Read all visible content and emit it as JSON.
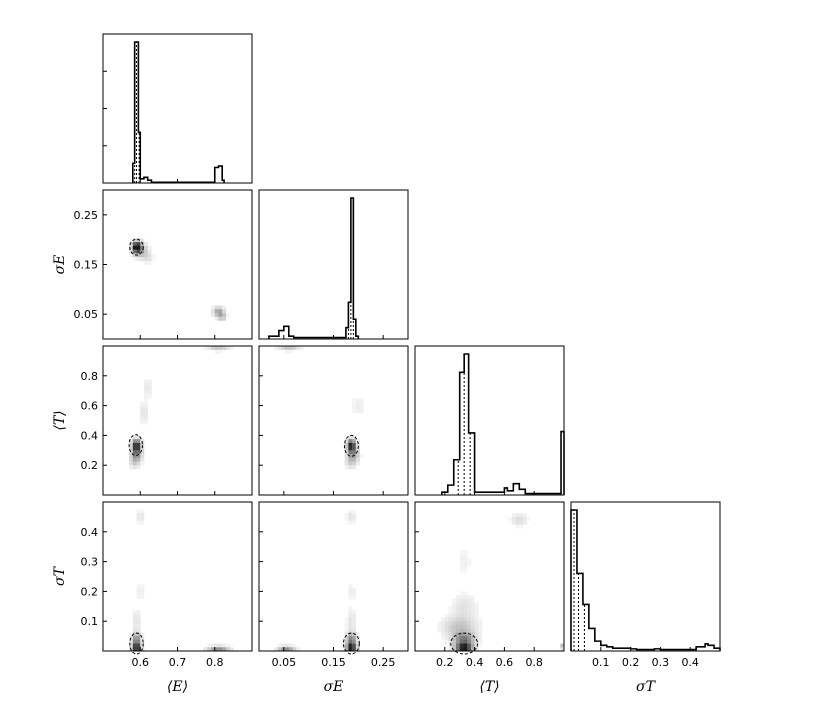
{
  "chart_data": {
    "type": "corner",
    "parameters": [
      {
        "key": "E",
        "label": "⟨E⟩",
        "range": [
          0.5,
          0.9
        ],
        "ticks": [
          0.6,
          0.7,
          0.8
        ],
        "tick_labels": [
          "0.6",
          "0.7",
          "0.8"
        ]
      },
      {
        "key": "sE",
        "label": "σE",
        "range": [
          0.0,
          0.3
        ],
        "ticks": [
          0.05,
          0.15,
          0.25
        ],
        "tick_labels": [
          "0.05",
          "0.15",
          "0.25"
        ]
      },
      {
        "key": "T",
        "label": "⟨T⟩",
        "range": [
          0.0,
          1.0
        ],
        "ticks": [
          0.2,
          0.4,
          0.6,
          0.8
        ],
        "tick_labels": [
          "0.2",
          "0.4",
          "0.6",
          "0.8"
        ]
      },
      {
        "key": "sT",
        "label": "σT",
        "range": [
          0.0,
          0.5
        ],
        "ticks": [
          0.1,
          0.2,
          0.3,
          0.4
        ],
        "tick_labels": [
          "0.1",
          "0.2",
          "0.3",
          "0.4"
        ]
      }
    ],
    "histograms": [
      {
        "param": "E",
        "quantiles": [
          0.585,
          0.59,
          0.597
        ],
        "bins": [
          [
            0.58,
            0.585,
            0.14
          ],
          [
            0.585,
            0.595,
            1.0
          ],
          [
            0.595,
            0.6,
            0.36
          ],
          [
            0.6,
            0.61,
            0.03
          ],
          [
            0.61,
            0.62,
            0.04
          ],
          [
            0.62,
            0.63,
            0.02
          ],
          [
            0.63,
            0.8,
            0.005
          ],
          [
            0.8,
            0.81,
            0.11
          ],
          [
            0.81,
            0.82,
            0.12
          ],
          [
            0.82,
            0.825,
            0.02
          ]
        ]
      },
      {
        "param": "sE",
        "quantiles": [
          0.18,
          0.185,
          0.19
        ],
        "bins": [
          [
            0.02,
            0.04,
            0.02
          ],
          [
            0.04,
            0.05,
            0.06
          ],
          [
            0.05,
            0.06,
            0.09
          ],
          [
            0.06,
            0.07,
            0.02
          ],
          [
            0.07,
            0.175,
            0.01
          ],
          [
            0.175,
            0.18,
            0.08
          ],
          [
            0.18,
            0.185,
            0.26
          ],
          [
            0.185,
            0.19,
            1.0
          ],
          [
            0.19,
            0.195,
            0.14
          ],
          [
            0.195,
            0.2,
            0.02
          ]
        ]
      },
      {
        "param": "T",
        "quantiles": [
          0.29,
          0.33,
          0.37
        ],
        "bins": [
          [
            0.18,
            0.22,
            0.02
          ],
          [
            0.22,
            0.26,
            0.07
          ],
          [
            0.26,
            0.3,
            0.25
          ],
          [
            0.3,
            0.33,
            0.87
          ],
          [
            0.33,
            0.36,
            1.0
          ],
          [
            0.36,
            0.4,
            0.44
          ],
          [
            0.4,
            0.42,
            0.02
          ],
          [
            0.42,
            0.6,
            0.02
          ],
          [
            0.6,
            0.62,
            0.05
          ],
          [
            0.62,
            0.66,
            0.03
          ],
          [
            0.66,
            0.7,
            0.08
          ],
          [
            0.7,
            0.74,
            0.04
          ],
          [
            0.74,
            0.98,
            0.01
          ],
          [
            0.98,
            1.0,
            0.45
          ]
        ]
      },
      {
        "param": "sT",
        "quantiles": [
          0.01,
          0.025,
          0.045
        ],
        "bins": [
          [
            0.0,
            0.02,
            1.0
          ],
          [
            0.02,
            0.04,
            0.55
          ],
          [
            0.04,
            0.06,
            0.33
          ],
          [
            0.06,
            0.08,
            0.16
          ],
          [
            0.08,
            0.1,
            0.07
          ],
          [
            0.1,
            0.12,
            0.04
          ],
          [
            0.12,
            0.14,
            0.03
          ],
          [
            0.14,
            0.2,
            0.02
          ],
          [
            0.2,
            0.22,
            0.015
          ],
          [
            0.22,
            0.28,
            0.01
          ],
          [
            0.28,
            0.3,
            0.015
          ],
          [
            0.3,
            0.42,
            0.01
          ],
          [
            0.42,
            0.45,
            0.03
          ],
          [
            0.45,
            0.46,
            0.05
          ],
          [
            0.46,
            0.48,
            0.04
          ],
          [
            0.48,
            0.5,
            0.02
          ]
        ]
      }
    ],
    "pairs": [
      {
        "x": "E",
        "y": "sE",
        "contour": {
          "cx": 0.59,
          "cy": 0.185,
          "rx": 0.018,
          "ry": 0.016
        },
        "blobs": [
          [
            0.59,
            0.185,
            1.0,
            0.008,
            0.008
          ],
          [
            0.6,
            0.18,
            0.4,
            0.012,
            0.01
          ],
          [
            0.62,
            0.165,
            0.15,
            0.01,
            0.008
          ],
          [
            0.81,
            0.055,
            0.4,
            0.01,
            0.007
          ],
          [
            0.82,
            0.045,
            0.25,
            0.008,
            0.006
          ]
        ]
      },
      {
        "x": "E",
        "y": "T",
        "contour": {
          "cx": 0.588,
          "cy": 0.335,
          "rx": 0.018,
          "ry": 0.07
        },
        "blobs": [
          [
            0.59,
            0.33,
            1.0,
            0.008,
            0.03
          ],
          [
            0.59,
            0.27,
            0.4,
            0.01,
            0.03
          ],
          [
            0.585,
            0.22,
            0.2,
            0.01,
            0.03
          ],
          [
            0.61,
            0.55,
            0.12,
            0.01,
            0.05
          ],
          [
            0.62,
            0.72,
            0.1,
            0.01,
            0.05
          ],
          [
            0.81,
            0.99,
            0.25,
            0.02,
            0.015
          ]
        ]
      },
      {
        "x": "sE",
        "y": "T",
        "contour": {
          "cx": 0.186,
          "cy": 0.33,
          "rx": 0.014,
          "ry": 0.07
        },
        "blobs": [
          [
            0.186,
            0.33,
            1.0,
            0.006,
            0.03
          ],
          [
            0.19,
            0.27,
            0.35,
            0.008,
            0.03
          ],
          [
            0.185,
            0.22,
            0.2,
            0.008,
            0.03
          ],
          [
            0.06,
            0.99,
            0.25,
            0.015,
            0.015
          ],
          [
            0.2,
            0.6,
            0.08,
            0.01,
            0.05
          ]
        ]
      },
      {
        "x": "E",
        "y": "sT",
        "contour": {
          "cx": 0.59,
          "cy": 0.025,
          "rx": 0.018,
          "ry": 0.035
        },
        "blobs": [
          [
            0.59,
            0.01,
            1.0,
            0.008,
            0.012
          ],
          [
            0.59,
            0.04,
            0.5,
            0.008,
            0.015
          ],
          [
            0.59,
            0.1,
            0.12,
            0.008,
            0.03
          ],
          [
            0.6,
            0.2,
            0.08,
            0.008,
            0.02
          ],
          [
            0.6,
            0.45,
            0.12,
            0.008,
            0.015
          ],
          [
            0.81,
            0.008,
            0.5,
            0.02,
            0.006
          ]
        ]
      },
      {
        "x": "sE",
        "y": "sT",
        "contour": {
          "cx": 0.186,
          "cy": 0.025,
          "rx": 0.016,
          "ry": 0.035
        },
        "blobs": [
          [
            0.186,
            0.01,
            1.0,
            0.007,
            0.012
          ],
          [
            0.186,
            0.04,
            0.5,
            0.007,
            0.015
          ],
          [
            0.186,
            0.1,
            0.12,
            0.007,
            0.03
          ],
          [
            0.186,
            0.2,
            0.08,
            0.007,
            0.02
          ],
          [
            0.186,
            0.45,
            0.12,
            0.007,
            0.015
          ],
          [
            0.055,
            0.008,
            0.5,
            0.012,
            0.006
          ]
        ]
      },
      {
        "x": "T",
        "y": "sT",
        "contour": {
          "cx": 0.33,
          "cy": 0.025,
          "rx": 0.09,
          "ry": 0.035
        },
        "blobs": [
          [
            0.33,
            0.01,
            1.0,
            0.04,
            0.012
          ],
          [
            0.33,
            0.04,
            0.5,
            0.05,
            0.015
          ],
          [
            0.3,
            0.08,
            0.25,
            0.08,
            0.025
          ],
          [
            0.33,
            0.15,
            0.12,
            0.06,
            0.03
          ],
          [
            0.33,
            0.3,
            0.06,
            0.04,
            0.04
          ],
          [
            0.7,
            0.44,
            0.15,
            0.04,
            0.015
          ],
          [
            0.99,
            0.015,
            0.35,
            0.01,
            0.006
          ]
        ]
      }
    ]
  }
}
